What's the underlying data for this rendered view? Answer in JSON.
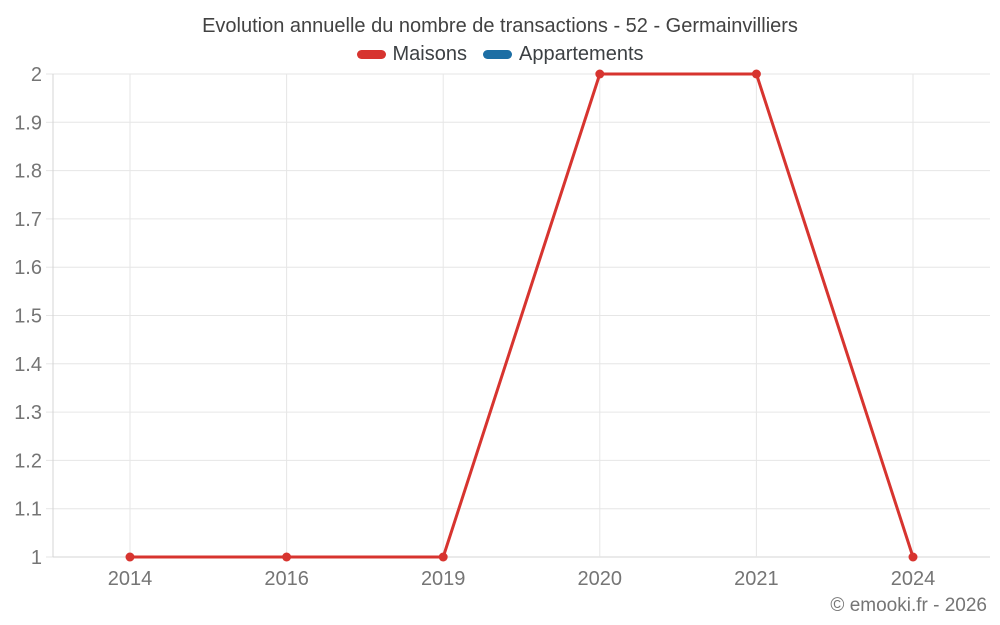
{
  "title": "Evolution annuelle du nombre de transactions - 52 - Germainvilliers",
  "legend": {
    "items": [
      {
        "label": "Maisons",
        "color": "#d7342f"
      },
      {
        "label": "Appartements",
        "color": "#1c6ea4"
      }
    ]
  },
  "footer": {
    "copyright": "© emooki.fr - 2026"
  },
  "colors": {
    "background": "#ffffff",
    "grid": "#e6e6e6",
    "axis": "#d4d4d4",
    "tick_label": "#757575",
    "title_text": "#424242",
    "maisons": "#d7342f",
    "appartements": "#1c6ea4"
  },
  "chart_data": {
    "type": "line",
    "title": "Evolution annuelle du nombre de transactions - 52 - Germainvilliers",
    "categories": [
      "2014",
      "2016",
      "2019",
      "2020",
      "2021",
      "2024"
    ],
    "series": [
      {
        "name": "Maisons",
        "color": "#d7342f",
        "values": [
          1,
          1,
          1,
          2,
          2,
          1
        ]
      },
      {
        "name": "Appartements",
        "color": "#1c6ea4",
        "values": []
      }
    ],
    "xlabel": "",
    "ylabel": "",
    "ylim": [
      1,
      2
    ],
    "yticks": [
      1,
      1.1,
      1.2,
      1.3,
      1.4,
      1.5,
      1.6,
      1.7,
      1.8,
      1.9,
      2
    ],
    "grid": true,
    "legend_position": "top",
    "marker": "circle"
  }
}
